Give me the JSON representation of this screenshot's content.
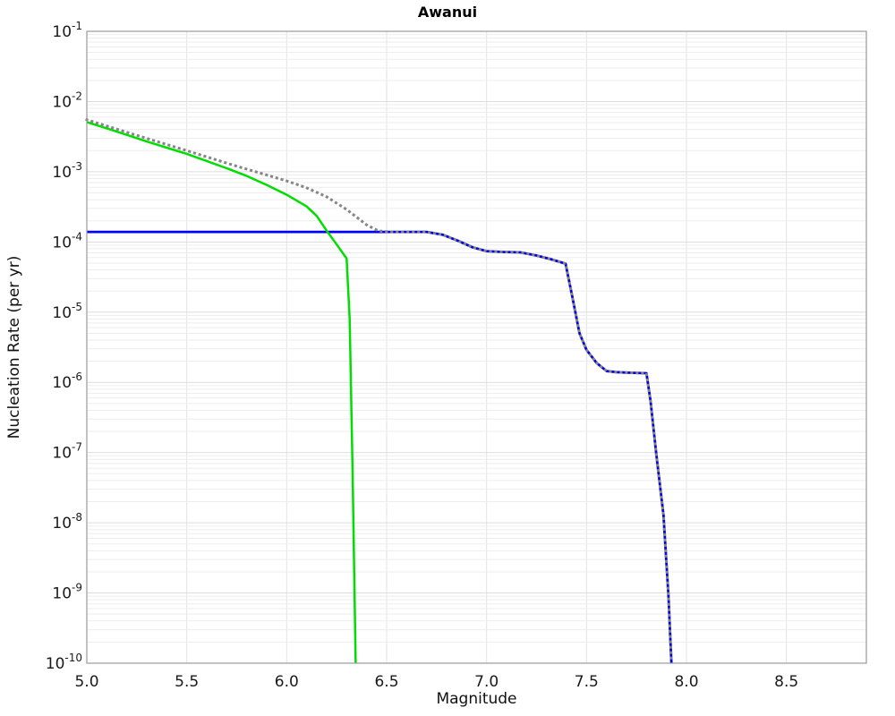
{
  "chart_data": {
    "type": "line",
    "title": "Awanui",
    "xlabel": "Magnitude",
    "ylabel": "Nucleation Rate (per yr)",
    "xlim": [
      5.0,
      8.9
    ],
    "ylim": [
      1e-10,
      0.1
    ],
    "yscale": "log",
    "legend_position": "none",
    "grid": {
      "visible": true,
      "vline_color": "#e3e3e3",
      "major_color": "#dddddd",
      "minor_color": "#ededed",
      "frame_color": "#999999"
    },
    "xticks": [
      {
        "value": 5.0,
        "label": "5.0"
      },
      {
        "value": 5.5,
        "label": "5.5"
      },
      {
        "value": 6.0,
        "label": "6.0"
      },
      {
        "value": 6.5,
        "label": "6.5"
      },
      {
        "value": 7.0,
        "label": "7.0"
      },
      {
        "value": 7.5,
        "label": "7.5"
      },
      {
        "value": 8.0,
        "label": "8.0"
      },
      {
        "value": 8.5,
        "label": "8.5"
      }
    ],
    "ytick_exponents": [
      -1,
      -2,
      -3,
      -4,
      -5,
      -6,
      -7,
      -8,
      -9,
      -10
    ],
    "series": [
      {
        "name": "blue-solid-rate-curve",
        "color": "#0000ee",
        "style": "solid",
        "width": 2.8,
        "points": [
          [
            5.0,
            0.000139
          ],
          [
            6.7,
            0.000139
          ],
          [
            6.78,
            0.000127
          ],
          [
            6.86,
            0.000103
          ],
          [
            6.93,
            8.4e-05
          ],
          [
            7.0,
            7.4e-05
          ],
          [
            7.08,
            7.2e-05
          ],
          [
            7.17,
            7.1e-05
          ],
          [
            7.25,
            6.4e-05
          ],
          [
            7.32,
            5.7e-05
          ],
          [
            7.395,
            4.9e-05
          ],
          [
            7.43,
            1.6e-05
          ],
          [
            7.465,
            5e-06
          ],
          [
            7.5,
            2.9e-06
          ],
          [
            7.55,
            1.9e-06
          ],
          [
            7.6,
            1.45e-06
          ],
          [
            7.65,
            1.4e-06
          ],
          [
            7.72,
            1.37e-06
          ],
          [
            7.8,
            1.35e-06
          ],
          [
            7.82,
            5.5e-07
          ],
          [
            7.85,
            9e-08
          ],
          [
            7.885,
            1.3e-08
          ],
          [
            7.91,
            9e-10
          ],
          [
            7.925,
            1e-10
          ]
        ]
      },
      {
        "name": "green-solid-rate-curve",
        "color": "#00dd00",
        "style": "solid",
        "width": 2.5,
        "points": [
          [
            5.0,
            0.0051
          ],
          [
            5.1,
            0.00415
          ],
          [
            5.2,
            0.00335
          ],
          [
            5.3,
            0.0027
          ],
          [
            5.4,
            0.0022
          ],
          [
            5.5,
            0.0018
          ],
          [
            5.6,
            0.00142
          ],
          [
            5.7,
            0.00112
          ],
          [
            5.8,
            0.00087
          ],
          [
            5.9,
            0.00065
          ],
          [
            6.0,
            0.00047
          ],
          [
            6.1,
            0.00032
          ],
          [
            6.15,
            0.000235
          ],
          [
            6.2,
            0.000145
          ],
          [
            6.25,
            9.2e-05
          ],
          [
            6.3,
            5.8e-05
          ],
          [
            6.315,
            8e-06
          ],
          [
            6.33,
            5e-08
          ],
          [
            6.345,
            1e-10
          ]
        ]
      },
      {
        "name": "gray-dotted-rate-curve",
        "color": "#858585",
        "style": "dotted",
        "width": 3,
        "points": [
          [
            5.0,
            0.0055
          ],
          [
            5.25,
            0.0033
          ],
          [
            5.5,
            0.002
          ],
          [
            5.75,
            0.0012
          ],
          [
            6.0,
            0.00074
          ],
          [
            6.1,
            0.00059
          ],
          [
            6.2,
            0.00044
          ],
          [
            6.3,
            0.00029
          ],
          [
            6.4,
            0.000175
          ],
          [
            6.46,
            0.000143
          ],
          [
            6.52,
            0.000139
          ],
          [
            6.7,
            0.000139
          ],
          [
            6.78,
            0.000127
          ],
          [
            6.86,
            0.000103
          ],
          [
            6.93,
            8.4e-05
          ],
          [
            7.0,
            7.4e-05
          ],
          [
            7.08,
            7.2e-05
          ],
          [
            7.17,
            7.1e-05
          ],
          [
            7.25,
            6.4e-05
          ],
          [
            7.32,
            5.7e-05
          ],
          [
            7.395,
            4.9e-05
          ],
          [
            7.43,
            1.6e-05
          ],
          [
            7.465,
            5e-06
          ],
          [
            7.5,
            2.9e-06
          ],
          [
            7.55,
            1.9e-06
          ],
          [
            7.6,
            1.45e-06
          ],
          [
            7.65,
            1.4e-06
          ],
          [
            7.72,
            1.37e-06
          ],
          [
            7.8,
            1.35e-06
          ],
          [
            7.82,
            5.5e-07
          ],
          [
            7.85,
            9e-08
          ],
          [
            7.885,
            1.3e-08
          ],
          [
            7.91,
            9e-10
          ],
          [
            7.925,
            1e-10
          ]
        ]
      }
    ]
  }
}
